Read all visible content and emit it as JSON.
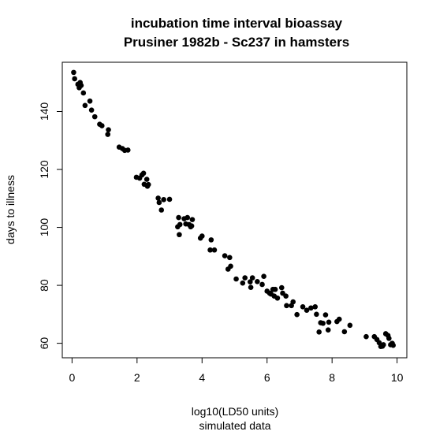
{
  "chart_data": {
    "type": "scatter",
    "title": "incubation time interval bioassay",
    "subtitle": "Prusiner 1982b - Sc237 in hamsters",
    "xlabel": "log10(LD50 units)",
    "xlabel2": "simulated data",
    "ylabel": "days to illness",
    "xlim": [
      -0.3,
      10.3
    ],
    "ylim": [
      55,
      157
    ],
    "xticks": [
      0,
      2,
      4,
      6,
      8,
      10
    ],
    "yticks": [
      60,
      80,
      100,
      120,
      140
    ],
    "grid": false,
    "point_color": "#000000",
    "points": [
      [
        0.05,
        153.5
      ],
      [
        0.08,
        151.3
      ],
      [
        0.18,
        149.4
      ],
      [
        0.22,
        148.2
      ],
      [
        0.25,
        150.0
      ],
      [
        0.28,
        149.0
      ],
      [
        0.35,
        146.4
      ],
      [
        0.4,
        142.1
      ],
      [
        0.55,
        143.6
      ],
      [
        0.6,
        140.5
      ],
      [
        0.7,
        138.2
      ],
      [
        0.85,
        135.6
      ],
      [
        0.92,
        135.1
      ],
      [
        1.12,
        133.7
      ],
      [
        1.1,
        132.1
      ],
      [
        1.45,
        127.7
      ],
      [
        1.55,
        127.2
      ],
      [
        1.62,
        126.6
      ],
      [
        1.72,
        126.7
      ],
      [
        1.98,
        117.3
      ],
      [
        2.08,
        117.0
      ],
      [
        2.15,
        118.1
      ],
      [
        2.2,
        118.7
      ],
      [
        2.22,
        114.9
      ],
      [
        2.3,
        116.6
      ],
      [
        2.32,
        114.2
      ],
      [
        2.35,
        114.8
      ],
      [
        2.65,
        110.1
      ],
      [
        2.68,
        108.6
      ],
      [
        2.75,
        106.0
      ],
      [
        2.82,
        109.6
      ],
      [
        3.0,
        109.7
      ],
      [
        3.25,
        100.2
      ],
      [
        3.28,
        103.4
      ],
      [
        3.3,
        97.5
      ],
      [
        3.32,
        101.0
      ],
      [
        3.45,
        103.0
      ],
      [
        3.5,
        101.2
      ],
      [
        3.55,
        103.4
      ],
      [
        3.6,
        101.0
      ],
      [
        3.65,
        100.2
      ],
      [
        3.68,
        100.5
      ],
      [
        3.7,
        102.7
      ],
      [
        3.95,
        96.3
      ],
      [
        4.0,
        97.0
      ],
      [
        4.25,
        92.2
      ],
      [
        4.28,
        95.7
      ],
      [
        4.38,
        92.2
      ],
      [
        4.7,
        90.2
      ],
      [
        4.8,
        85.6
      ],
      [
        4.85,
        89.6
      ],
      [
        4.88,
        86.6
      ],
      [
        5.05,
        82.2
      ],
      [
        5.25,
        80.8
      ],
      [
        5.32,
        82.6
      ],
      [
        5.48,
        81.2
      ],
      [
        5.5,
        79.3
      ],
      [
        5.55,
        82.6
      ],
      [
        5.7,
        81.3
      ],
      [
        5.85,
        80.3
      ],
      [
        5.9,
        83.1
      ],
      [
        6.0,
        78.0
      ],
      [
        6.08,
        77.3
      ],
      [
        6.12,
        77.0
      ],
      [
        6.18,
        78.6
      ],
      [
        6.22,
        76.3
      ],
      [
        6.25,
        78.6
      ],
      [
        6.32,
        75.6
      ],
      [
        6.45,
        79.2
      ],
      [
        6.48,
        77.3
      ],
      [
        6.58,
        76.3
      ],
      [
        6.6,
        73.0
      ],
      [
        6.75,
        73.0
      ],
      [
        6.8,
        74.3
      ],
      [
        6.92,
        69.9
      ],
      [
        7.1,
        72.6
      ],
      [
        7.22,
        71.4
      ],
      [
        7.35,
        72.2
      ],
      [
        7.48,
        72.6
      ],
      [
        7.52,
        70.0
      ],
      [
        7.6,
        63.9
      ],
      [
        7.65,
        67.1
      ],
      [
        7.72,
        66.9
      ],
      [
        7.8,
        69.8
      ],
      [
        7.88,
        64.6
      ],
      [
        7.9,
        67.3
      ],
      [
        8.15,
        67.5
      ],
      [
        8.22,
        68.3
      ],
      [
        8.38,
        64.0
      ],
      [
        8.55,
        66.2
      ],
      [
        9.05,
        62.3
      ],
      [
        9.3,
        62.3
      ],
      [
        9.38,
        61.3
      ],
      [
        9.45,
        60.2
      ],
      [
        9.5,
        58.9
      ],
      [
        9.55,
        59.0
      ],
      [
        9.58,
        59.5
      ],
      [
        9.65,
        63.3
      ],
      [
        9.72,
        62.7
      ],
      [
        9.75,
        61.7
      ],
      [
        9.8,
        59.5
      ],
      [
        9.85,
        60.0
      ],
      [
        9.88,
        59.3
      ]
    ]
  }
}
